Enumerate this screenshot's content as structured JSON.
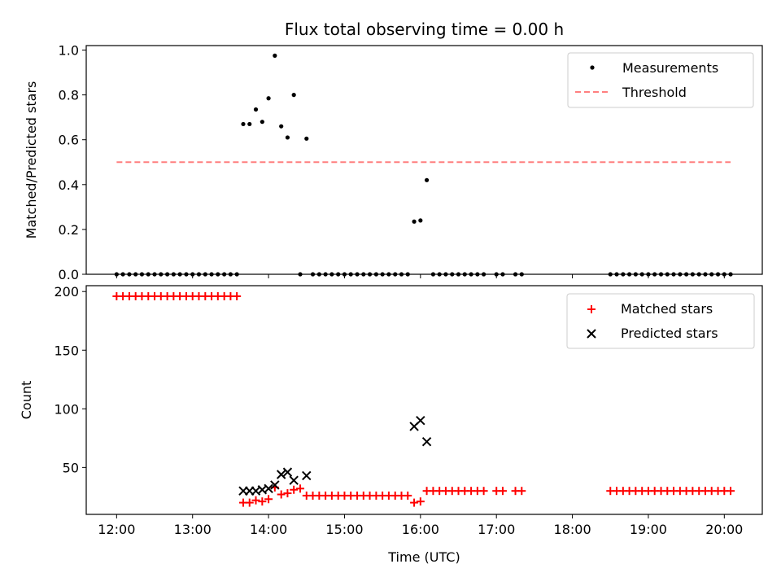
{
  "chart_data": [
    {
      "type": "scatter",
      "title": "Flux total observing time = 0.00 h",
      "xlabel": "",
      "ylabel": "Matched/Predicted stars",
      "xlim": [
        11.6,
        20.5
      ],
      "ylim": [
        0.0,
        1.02
      ],
      "yticks": [
        0.0,
        0.2,
        0.4,
        0.6,
        0.8,
        1.0
      ],
      "ytick_labels": [
        "0.0",
        "0.2",
        "0.4",
        "0.6",
        "0.8",
        "1.0"
      ],
      "grid": false,
      "legend_position": "top-right",
      "series": [
        {
          "name": "Measurements",
          "color": "#000000",
          "marker": "dot",
          "x": [
            12.0,
            12.083,
            12.167,
            12.25,
            12.333,
            12.417,
            12.5,
            12.583,
            12.667,
            12.75,
            12.833,
            12.917,
            13.0,
            13.083,
            13.167,
            13.25,
            13.333,
            13.417,
            13.5,
            13.583,
            13.667,
            13.75,
            13.833,
            13.917,
            14.0,
            14.083,
            14.167,
            14.25,
            14.333,
            14.417,
            14.5,
            14.583,
            14.667,
            14.75,
            14.833,
            14.917,
            15.0,
            15.083,
            15.167,
            15.25,
            15.333,
            15.417,
            15.5,
            15.583,
            15.667,
            15.75,
            15.833,
            15.917,
            16.0,
            16.083,
            16.167,
            16.25,
            16.333,
            16.417,
            16.5,
            16.583,
            16.667,
            16.75,
            16.833,
            17.0,
            17.083,
            17.25,
            17.333,
            18.5,
            18.583,
            18.667,
            18.75,
            18.833,
            18.917,
            19.0,
            19.083,
            19.167,
            19.25,
            19.333,
            19.417,
            19.5,
            19.583,
            19.667,
            19.75,
            19.833,
            19.917,
            20.0,
            20.083
          ],
          "y": [
            0,
            0,
            0,
            0,
            0,
            0,
            0,
            0,
            0,
            0,
            0,
            0,
            0,
            0,
            0,
            0,
            0,
            0,
            0,
            0,
            0.67,
            0.67,
            0.735,
            0.68,
            0.785,
            0.975,
            0.66,
            0.61,
            0.8,
            0,
            0.605,
            0,
            0,
            0,
            0,
            0,
            0,
            0,
            0,
            0,
            0,
            0,
            0,
            0,
            0,
            0,
            0,
            0.235,
            0.24,
            0.42,
            0,
            0,
            0,
            0,
            0,
            0,
            0,
            0,
            0,
            0,
            0,
            0,
            0,
            0,
            0,
            0,
            0,
            0,
            0,
            0,
            0,
            0,
            0,
            0,
            0,
            0,
            0,
            0,
            0,
            0,
            0,
            0,
            0
          ]
        },
        {
          "name": "Threshold",
          "color": "#ff7f7f",
          "style": "dashed",
          "x": [
            12.0,
            20.083
          ],
          "y": [
            0.5,
            0.5
          ]
        }
      ]
    },
    {
      "type": "scatter",
      "title": "",
      "xlabel": "Time (UTC)",
      "ylabel": "Count",
      "xlim": [
        11.6,
        20.5
      ],
      "ylim": [
        10,
        205
      ],
      "xticks": [
        12,
        13,
        14,
        15,
        16,
        17,
        18,
        19,
        20
      ],
      "xtick_labels": [
        "12:00",
        "13:00",
        "14:00",
        "15:00",
        "16:00",
        "17:00",
        "18:00",
        "19:00",
        "20:00"
      ],
      "yticks": [
        50,
        100,
        150,
        200
      ],
      "ytick_labels": [
        "50",
        "100",
        "150",
        "200"
      ],
      "grid": false,
      "legend_position": "top-right",
      "series": [
        {
          "name": "Matched stars",
          "color": "#ff0000",
          "marker": "plus",
          "x": [
            12.0,
            12.083,
            12.167,
            12.25,
            12.333,
            12.417,
            12.5,
            12.583,
            12.667,
            12.75,
            12.833,
            12.917,
            13.0,
            13.083,
            13.167,
            13.25,
            13.333,
            13.417,
            13.5,
            13.583,
            13.667,
            13.75,
            13.833,
            13.917,
            14.0,
            14.083,
            14.167,
            14.25,
            14.333,
            14.417,
            14.5,
            14.583,
            14.667,
            14.75,
            14.833,
            14.917,
            15.0,
            15.083,
            15.167,
            15.25,
            15.333,
            15.417,
            15.5,
            15.583,
            15.667,
            15.75,
            15.833,
            15.917,
            16.0,
            16.083,
            16.167,
            16.25,
            16.333,
            16.417,
            16.5,
            16.583,
            16.667,
            16.75,
            16.833,
            17.0,
            17.083,
            17.25,
            17.333,
            18.5,
            18.583,
            18.667,
            18.75,
            18.833,
            18.917,
            19.0,
            19.083,
            19.167,
            19.25,
            19.333,
            19.417,
            19.5,
            19.583,
            19.667,
            19.75,
            19.833,
            19.917,
            20.0,
            20.083
          ],
          "y": [
            196,
            196,
            196,
            196,
            196,
            196,
            196,
            196,
            196,
            196,
            196,
            196,
            196,
            196,
            196,
            196,
            196,
            196,
            196,
            196,
            20,
            20,
            22,
            21,
            23,
            33,
            27,
            28,
            31,
            32,
            26,
            26,
            26,
            26,
            26,
            26,
            26,
            26,
            26,
            26,
            26,
            26,
            26,
            26,
            26,
            26,
            26,
            20,
            21,
            30,
            30,
            30,
            30,
            30,
            30,
            30,
            30,
            30,
            30,
            30,
            30,
            30,
            30,
            30,
            30,
            30,
            30,
            30,
            30,
            30,
            30,
            30,
            30,
            30,
            30,
            30,
            30,
            30,
            30,
            30,
            30,
            30,
            30
          ]
        },
        {
          "name": "Predicted stars",
          "color": "#000000",
          "marker": "x",
          "x": [
            13.667,
            13.75,
            13.833,
            13.917,
            14.0,
            14.083,
            14.167,
            14.25,
            14.333,
            14.5,
            15.917,
            16.0,
            16.083
          ],
          "y": [
            30,
            30,
            30,
            31,
            32,
            35,
            44,
            46,
            39,
            43,
            85,
            90,
            72
          ]
        }
      ]
    }
  ]
}
